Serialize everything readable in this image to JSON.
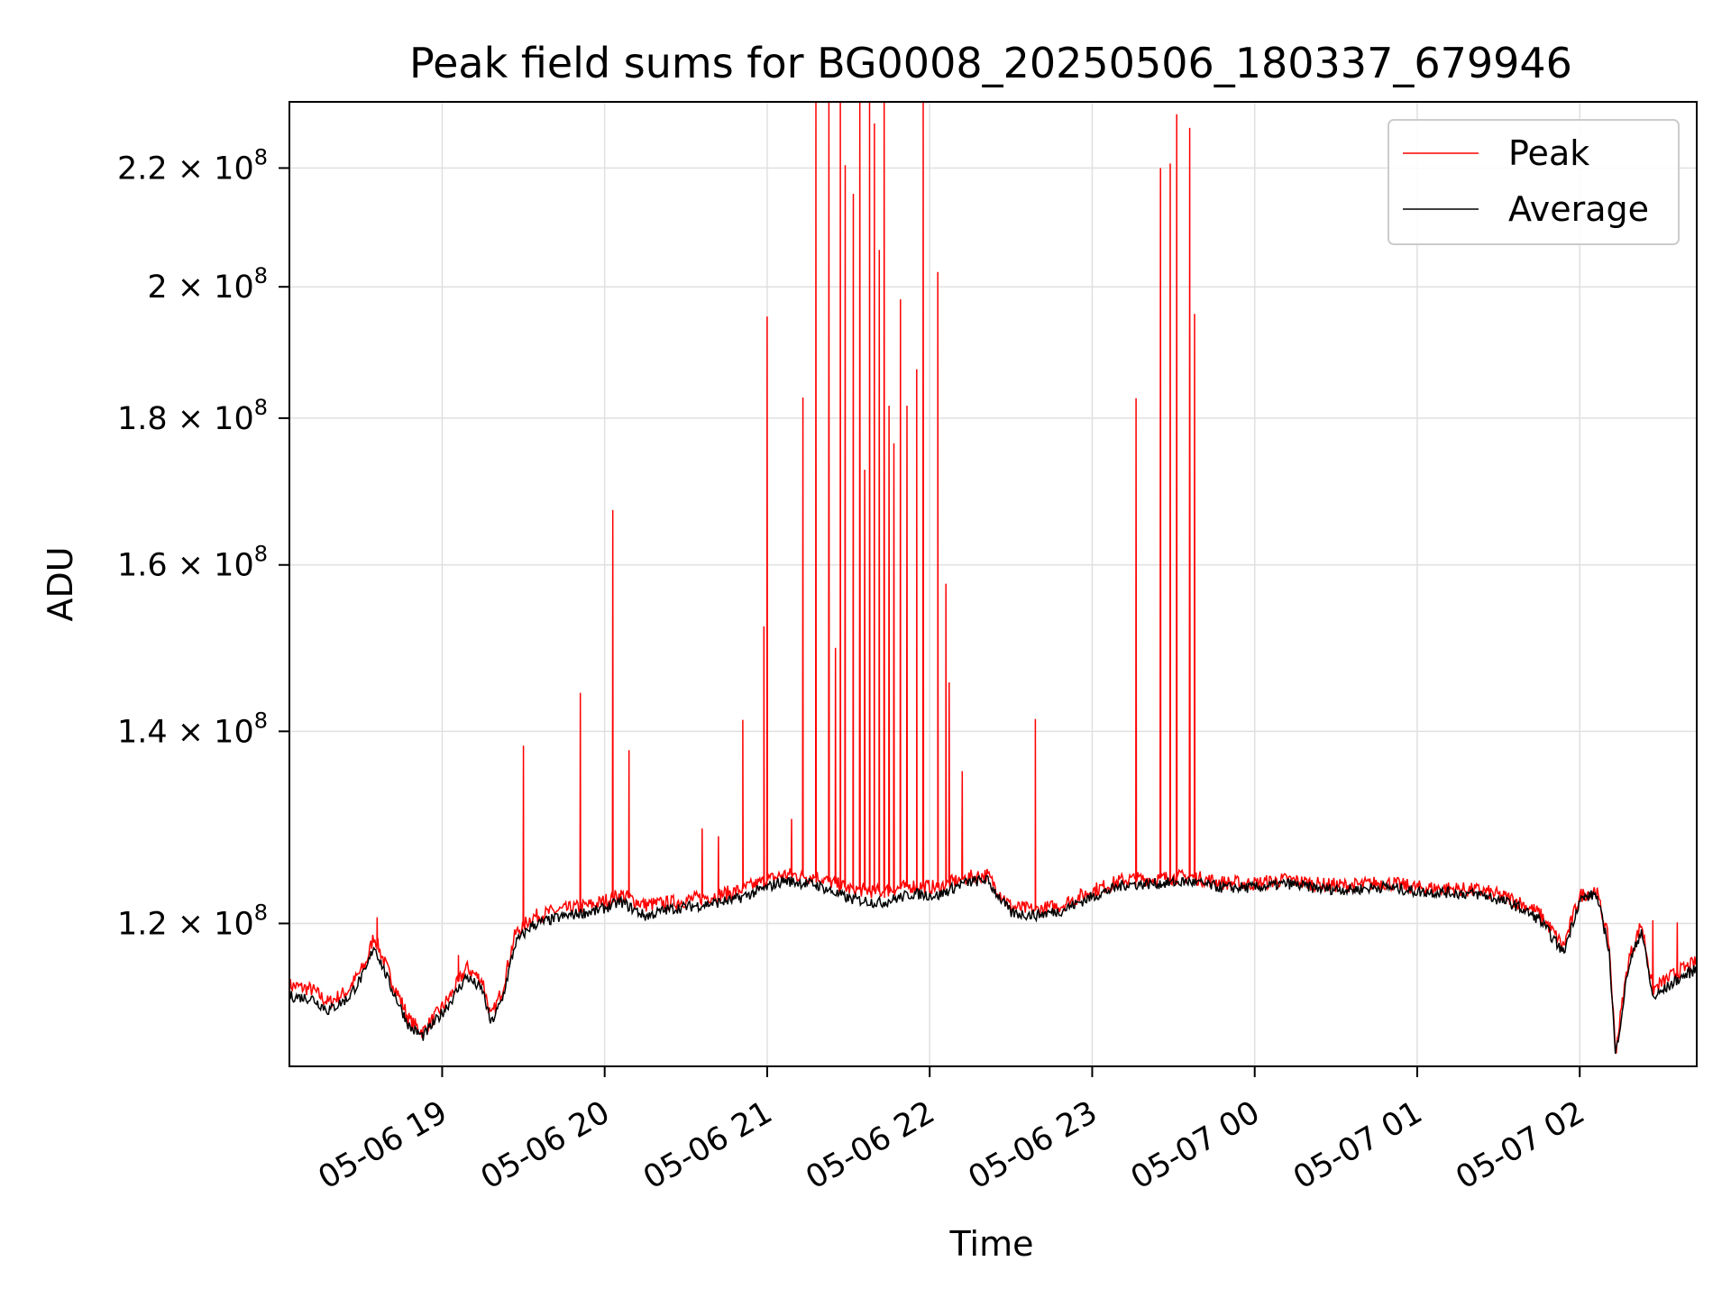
{
  "chart_data": {
    "type": "line",
    "title": "Peak field sums for BG0008_20250506_180337_679946",
    "xlabel": "Time",
    "ylabel": "ADU",
    "x_tick_labels": [
      "05-06 19",
      "05-06 20",
      "05-06 21",
      "05-06 22",
      "05-06 23",
      "05-07 00",
      "05-07 01",
      "05-07 02"
    ],
    "y_tick_mantissas": [
      "1.2",
      "1.4",
      "1.6",
      "1.8",
      "2",
      "2.2"
    ],
    "y_tick_times": "×",
    "y_tick_base": "10",
    "y_tick_exponent": "8",
    "y_tick_values": [
      120000000,
      140000000,
      160000000,
      180000000,
      200000000,
      220000000
    ],
    "x_range_hours": [
      18.06,
      26.72
    ],
    "ylim": [
      107000000,
      232000000
    ],
    "y_scale": "log",
    "grid": true,
    "legend_position": "top-right",
    "x_unit": "hours since 2025-05-06 00:00",
    "series": [
      {
        "name": "Peak",
        "color": "#ff0000",
        "baseline_points": [
          [
            18.06,
            114200000
          ],
          [
            18.2,
            113800000
          ],
          [
            18.3,
            112600000
          ],
          [
            18.42,
            113700000
          ],
          [
            18.53,
            116200000
          ],
          [
            18.58,
            118800000
          ],
          [
            18.68,
            115000000
          ],
          [
            18.8,
            111000000
          ],
          [
            18.88,
            110000000
          ],
          [
            18.98,
            111800000
          ],
          [
            19.05,
            113200000
          ],
          [
            19.15,
            115800000
          ],
          [
            19.25,
            114600000
          ],
          [
            19.3,
            111200000
          ],
          [
            19.37,
            113800000
          ],
          [
            19.45,
            119000000
          ],
          [
            19.55,
            120600000
          ],
          [
            19.7,
            121200000
          ],
          [
            19.85,
            121600000
          ],
          [
            19.95,
            121900000
          ],
          [
            20.1,
            122800000
          ],
          [
            20.25,
            121800000
          ],
          [
            20.4,
            122000000
          ],
          [
            20.6,
            122500000
          ],
          [
            20.8,
            123100000
          ],
          [
            21.0,
            124200000
          ],
          [
            21.1,
            124800000
          ],
          [
            21.3,
            124600000
          ],
          [
            21.5,
            123400000
          ],
          [
            21.7,
            123100000
          ],
          [
            21.9,
            123700000
          ],
          [
            22.05,
            123500000
          ],
          [
            22.2,
            124400000
          ],
          [
            22.35,
            124800000
          ],
          [
            22.5,
            121600000
          ],
          [
            22.65,
            121300000
          ],
          [
            22.8,
            121700000
          ],
          [
            23.0,
            123200000
          ],
          [
            23.2,
            124300000
          ],
          [
            23.4,
            124400000
          ],
          [
            23.6,
            124600000
          ],
          [
            23.8,
            124000000
          ],
          [
            24.0,
            123900000
          ],
          [
            24.2,
            124300000
          ],
          [
            24.4,
            123800000
          ],
          [
            24.6,
            123700000
          ],
          [
            24.8,
            124000000
          ],
          [
            25.0,
            123500000
          ],
          [
            25.2,
            123400000
          ],
          [
            25.4,
            123200000
          ],
          [
            25.6,
            122300000
          ],
          [
            25.75,
            121000000
          ],
          [
            25.9,
            117800000
          ],
          [
            26.0,
            122700000
          ],
          [
            26.1,
            123300000
          ],
          [
            26.18,
            118200000
          ],
          [
            26.22,
            108200000
          ],
          [
            26.3,
            116500000
          ],
          [
            26.38,
            120000000
          ],
          [
            26.45,
            113800000
          ],
          [
            26.6,
            115400000
          ],
          [
            26.72,
            116300000
          ]
        ],
        "spikes": [
          [
            18.6,
            120600000
          ],
          [
            19.1,
            117000000
          ],
          [
            19.5,
            138400000
          ],
          [
            19.85,
            144400000
          ],
          [
            20.05,
            167200000
          ],
          [
            20.15,
            137900000
          ],
          [
            20.6,
            129500000
          ],
          [
            20.7,
            128700000
          ],
          [
            20.85,
            141300000
          ],
          [
            20.98,
            152300000
          ],
          [
            21.0,
            195300000
          ],
          [
            21.15,
            130500000
          ],
          [
            21.22,
            183000000
          ],
          [
            21.3,
            232000000
          ],
          [
            21.38,
            232000000
          ],
          [
            21.42,
            149700000
          ],
          [
            21.45,
            232000000
          ],
          [
            21.48,
            220500000
          ],
          [
            21.53,
            215500000
          ],
          [
            21.57,
            232000000
          ],
          [
            21.6,
            172700000
          ],
          [
            21.63,
            232000000
          ],
          [
            21.66,
            228000000
          ],
          [
            21.69,
            206000000
          ],
          [
            21.72,
            232000000
          ],
          [
            21.75,
            181800000
          ],
          [
            21.78,
            176400000
          ],
          [
            21.82,
            198000000
          ],
          [
            21.86,
            181800000
          ],
          [
            21.92,
            187200000
          ],
          [
            21.96,
            232000000
          ],
          [
            22.05,
            202400000
          ],
          [
            22.1,
            157600000
          ],
          [
            22.12,
            145600000
          ],
          [
            22.2,
            135600000
          ],
          [
            22.65,
            141400000
          ],
          [
            23.27,
            182900000
          ],
          [
            23.42,
            220000000
          ],
          [
            23.48,
            220800000
          ],
          [
            23.52,
            229700000
          ],
          [
            23.6,
            227200000
          ],
          [
            23.63,
            195700000
          ],
          [
            26.45,
            120300000
          ],
          [
            26.6,
            120100000
          ]
        ]
      },
      {
        "name": "Average",
        "color": "#000000",
        "points": [
          [
            18.06,
            113200000
          ],
          [
            18.2,
            113000000
          ],
          [
            18.3,
            111900000
          ],
          [
            18.42,
            113000000
          ],
          [
            18.53,
            115500000
          ],
          [
            18.58,
            117900000
          ],
          [
            18.68,
            114200000
          ],
          [
            18.8,
            110400000
          ],
          [
            18.88,
            109600000
          ],
          [
            18.98,
            111300000
          ],
          [
            19.05,
            112700000
          ],
          [
            19.15,
            115000000
          ],
          [
            19.25,
            113700000
          ],
          [
            19.3,
            110700000
          ],
          [
            19.37,
            112900000
          ],
          [
            19.45,
            118100000
          ],
          [
            19.55,
            119800000
          ],
          [
            19.7,
            120500000
          ],
          [
            19.85,
            121000000
          ],
          [
            19.95,
            121200000
          ],
          [
            20.1,
            122100000
          ],
          [
            20.25,
            120700000
          ],
          [
            20.4,
            121400000
          ],
          [
            20.6,
            121800000
          ],
          [
            20.8,
            122300000
          ],
          [
            21.0,
            123500000
          ],
          [
            21.1,
            124200000
          ],
          [
            21.3,
            123800000
          ],
          [
            21.5,
            122400000
          ],
          [
            21.7,
            122000000
          ],
          [
            21.9,
            122900000
          ],
          [
            22.05,
            122700000
          ],
          [
            22.2,
            123900000
          ],
          [
            22.35,
            124300000
          ],
          [
            22.5,
            121000000
          ],
          [
            22.65,
            120800000
          ],
          [
            22.8,
            121200000
          ],
          [
            23.0,
            122600000
          ],
          [
            23.2,
            123800000
          ],
          [
            23.4,
            123900000
          ],
          [
            23.6,
            124100000
          ],
          [
            23.8,
            123500000
          ],
          [
            24.0,
            123500000
          ],
          [
            24.2,
            123900000
          ],
          [
            24.4,
            123400000
          ],
          [
            24.6,
            123300000
          ],
          [
            24.8,
            123600000
          ],
          [
            25.0,
            123100000
          ],
          [
            25.2,
            123000000
          ],
          [
            25.4,
            122800000
          ],
          [
            25.6,
            121800000
          ],
          [
            25.75,
            120400000
          ],
          [
            25.9,
            117200000
          ],
          [
            26.0,
            122300000
          ],
          [
            26.1,
            122900000
          ],
          [
            26.18,
            117600000
          ],
          [
            26.22,
            107800000
          ],
          [
            26.3,
            115900000
          ],
          [
            26.38,
            119400000
          ],
          [
            26.45,
            113000000
          ],
          [
            26.6,
            114700000
          ],
          [
            26.72,
            115700000
          ]
        ]
      }
    ]
  }
}
